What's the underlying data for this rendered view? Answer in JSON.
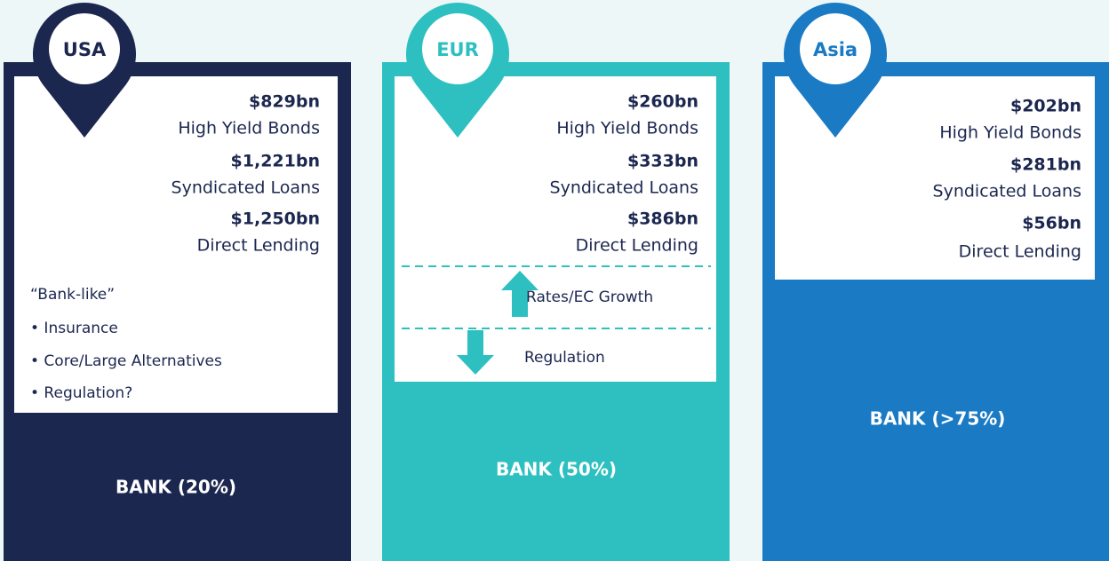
{
  "panels": [
    {
      "region": "USA",
      "items": [
        {
          "amount": "$829bn",
          "label": "High Yield Bonds"
        },
        {
          "amount": "$1,221bn",
          "label": "Syndicated Loans"
        },
        {
          "amount": "$1,250bn",
          "label": "Direct Lending"
        }
      ],
      "notes": [
        "“Bank-like”",
        "• Insurance",
        "• Core/Large Alternatives",
        "• Regulation?"
      ],
      "bank": "BANK (20%)"
    },
    {
      "region": "EUR",
      "items": [
        {
          "amount": "$260bn",
          "label": "High Yield Bonds"
        },
        {
          "amount": "$333bn",
          "label": "Syndicated Loans"
        },
        {
          "amount": "$386bn",
          "label": "Direct Lending"
        }
      ],
      "drivers": {
        "up": "Rates/EC Growth",
        "down": "Regulation"
      },
      "bank": "BANK (50%)"
    },
    {
      "region": "Asia",
      "items": [
        {
          "amount": "$202bn",
          "label": "High Yield Bonds"
        },
        {
          "amount": "$281bn",
          "label": "Syndicated Loans"
        },
        {
          "amount": "$56bn",
          "label": "Direct Lending"
        }
      ],
      "bank": "BANK (>75%)"
    }
  ]
}
